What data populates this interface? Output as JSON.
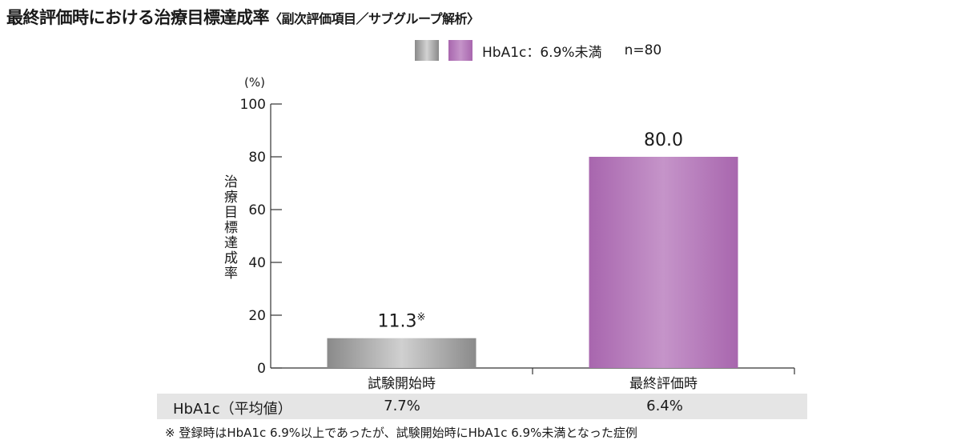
{
  "title": {
    "main": "最終評価時における治療目標達成率",
    "sub": "〈副次評価項目／サブグループ解析〉"
  },
  "legend": {
    "colors": [
      "#a3a3a3",
      "#b97dbe"
    ],
    "label": "HbA1c：6.9%未満",
    "n": "n=80"
  },
  "chart_data": {
    "type": "bar",
    "categories": [
      "試験開始時",
      "最終評価時"
    ],
    "values": [
      11.3,
      80.0
    ],
    "value_labels": [
      "11.3",
      "80.0"
    ],
    "value_marks": [
      "※",
      ""
    ],
    "colors": [
      "gray",
      "purple"
    ],
    "ylabel": "治療目標達成率",
    "yunit": "(%)",
    "ylim": [
      0,
      100
    ],
    "yticks": [
      "0",
      "20",
      "40",
      "60",
      "80",
      "100"
    ],
    "grid": false
  },
  "hba1c_row": {
    "label": "HbA1c（平均値）",
    "values": [
      "7.7%",
      "6.4%"
    ]
  },
  "footnote": "※ 登録時はHbA1c 6.9%以上であったが、試験開始時にHbA1c 6.9%未満となった症例"
}
